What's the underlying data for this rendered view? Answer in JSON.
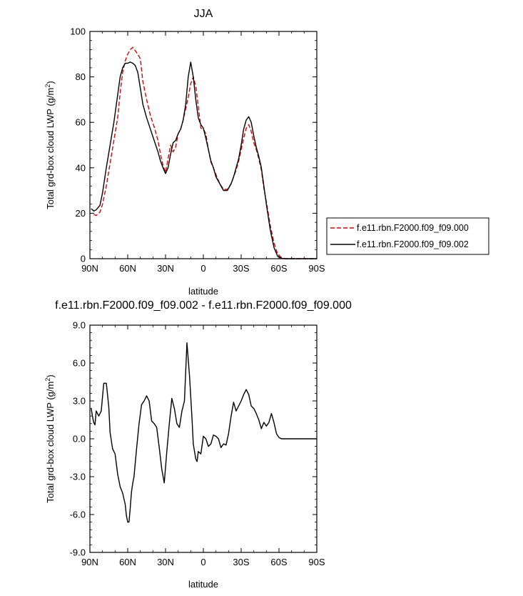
{
  "chart_data": [
    {
      "type": "line",
      "title": "JJA",
      "xlabel": "latitude",
      "ylabel_prefix": "Total grd-box cloud LWP (g/m",
      "ylabel_sup": "2",
      "ylabel_suffix": ")",
      "x_ticks": [
        90,
        60,
        30,
        0,
        -30,
        -60,
        -90
      ],
      "x_tick_labels": [
        "90N",
        "60N",
        "30N",
        "0",
        "30S",
        "60S",
        "90S"
      ],
      "xlim": [
        90,
        -90
      ],
      "ylim": [
        0,
        100
      ],
      "y_ticks": [
        0,
        20,
        40,
        60,
        80,
        100
      ],
      "y_tick_labels": [
        "0",
        "20",
        "40",
        "60",
        "80",
        "100"
      ],
      "legend_placement": "outside-right",
      "series": [
        {
          "name": "f.e11.rbn.F2000.f09_f09.000",
          "color": "#dd0000",
          "dash": "dashed",
          "x": [
            87,
            85,
            82,
            80,
            77,
            74,
            71,
            68,
            66,
            64,
            62,
            60,
            58,
            56,
            54,
            52,
            50,
            48,
            45,
            42,
            39,
            36,
            34,
            32,
            30,
            28,
            26,
            24,
            22,
            20,
            18,
            16,
            14,
            12,
            10,
            8,
            6,
            4,
            2,
            0,
            -2,
            -4,
            -6,
            -8,
            -10,
            -13,
            -16,
            -19,
            -22,
            -24,
            -26,
            -28,
            -30,
            -32,
            -34,
            -36,
            -38,
            -40,
            -42,
            -44,
            -46,
            -48,
            -50,
            -53,
            -56,
            -59,
            -62,
            -65,
            -68,
            -70,
            -72,
            -74,
            -76,
            -78,
            -82,
            -86,
            -90
          ],
          "y": [
            19.5,
            19,
            20.5,
            24,
            32,
            42,
            52,
            62,
            73,
            82,
            87,
            90,
            92,
            93,
            91.5,
            90,
            88,
            78,
            70,
            63,
            58,
            52,
            46,
            41,
            38,
            44,
            50,
            47,
            49,
            55,
            57,
            61,
            66,
            71,
            77,
            80,
            76,
            67,
            57.5,
            57,
            55,
            48,
            42.5,
            40,
            37,
            33,
            30.5,
            30.5,
            33,
            36,
            39,
            43,
            48,
            53,
            57.5,
            59,
            56,
            51,
            48,
            44,
            39,
            31,
            25,
            15,
            7,
            2,
            0.5,
            0,
            0,
            0,
            0,
            0,
            0,
            0,
            0,
            0,
            0
          ]
        },
        {
          "name": "f.e11.rbn.F2000.f09_f09.002",
          "color": "#000000",
          "dash": "solid",
          "x": [
            89,
            87,
            85,
            82,
            80,
            77,
            74,
            71,
            68,
            66,
            64,
            62,
            60,
            58,
            56,
            54,
            52,
            50,
            48,
            45,
            42,
            39,
            36,
            34,
            32,
            30,
            28,
            26,
            24,
            22,
            20,
            18,
            16,
            14,
            12,
            10,
            8,
            6,
            4,
            2,
            0,
            -2,
            -4,
            -6,
            -8,
            -10,
            -13,
            -16,
            -19,
            -22,
            -24,
            -26,
            -28,
            -30,
            -32,
            -34,
            -36,
            -38,
            -40,
            -42,
            -44,
            -46,
            -48,
            -50,
            -53,
            -56,
            -59,
            -62,
            -65,
            -68,
            -70,
            -72,
            -74,
            -76,
            -78,
            -82,
            -86,
            -90
          ],
          "y": [
            22,
            21,
            21.5,
            23.5,
            29,
            40,
            50,
            60,
            72,
            80,
            84,
            86,
            86,
            86.5,
            86,
            85,
            82,
            75,
            68,
            62,
            57,
            52,
            47,
            43,
            40,
            37.5,
            40,
            46,
            51,
            52,
            55,
            57,
            61,
            68,
            80,
            86.5,
            80,
            70,
            62,
            59,
            57.5,
            53,
            48,
            43,
            40,
            36,
            33,
            30,
            30,
            33,
            36,
            40,
            44,
            50,
            57,
            61,
            62.5,
            60,
            54,
            49,
            45,
            40,
            32,
            24,
            13,
            5,
            1,
            0.2,
            0,
            0,
            0,
            0,
            0,
            0,
            0,
            0,
            0,
            0
          ]
        }
      ]
    },
    {
      "type": "line",
      "title": "f.e11.rbn.F2000.f09_f09.002 - f.e11.rbn.F2000.f09_f09.000",
      "xlabel": "latitude",
      "ylabel_prefix": "Total grd-box cloud LWP (g/m",
      "ylabel_sup": "2",
      "ylabel_suffix": ")",
      "x_ticks": [
        90,
        60,
        30,
        0,
        -30,
        -60,
        -90
      ],
      "x_tick_labels": [
        "90N",
        "60N",
        "30N",
        "0",
        "30S",
        "60S",
        "90S"
      ],
      "xlim": [
        90,
        -90
      ],
      "ylim": [
        -9,
        9
      ],
      "y_ticks": [
        -9,
        -6,
        -3,
        0,
        3,
        6,
        9
      ],
      "y_tick_labels": [
        "-9.0",
        "-6.0",
        "-3.0",
        "0.0",
        "3.0",
        "6.0",
        "9.0"
      ],
      "series": [
        {
          "name": "",
          "color": "#000000",
          "dash": "solid",
          "x": [
            89,
            88,
            87,
            86,
            85,
            83,
            81,
            79,
            77,
            76,
            75,
            74,
            72,
            70,
            68,
            66,
            64,
            62,
            61,
            60,
            59,
            58,
            57,
            56,
            55,
            53,
            51,
            49,
            47,
            45,
            43,
            41,
            39,
            37,
            35,
            33,
            31,
            29,
            27,
            25,
            23,
            21,
            19,
            17,
            15,
            13,
            11,
            9,
            8,
            7,
            6,
            5,
            4,
            2,
            0,
            -2,
            -4,
            -6,
            -8,
            -10,
            -12,
            -14,
            -16,
            -18,
            -20,
            -22,
            -24,
            -26,
            -28,
            -30,
            -32,
            -34,
            -36,
            -38,
            -40,
            -42,
            -44,
            -46,
            -48,
            -50,
            -52,
            -54,
            -56,
            -58,
            -60,
            -62,
            -64,
            -66,
            -68,
            -70,
            -75,
            -80,
            -85,
            -90
          ],
          "y": [
            2.4,
            1.8,
            1.3,
            1.1,
            2.2,
            1.8,
            2.2,
            4.4,
            4.4,
            3.5,
            2.5,
            0.5,
            -0.8,
            -1.2,
            -2.8,
            -3.8,
            -4.3,
            -5.2,
            -6.1,
            -6.6,
            -6.6,
            -5.5,
            -4.2,
            -3.5,
            -3.0,
            -0.8,
            1.2,
            2.7,
            3.0,
            3.4,
            3.0,
            1.4,
            1.2,
            0.9,
            -0.7,
            -2.4,
            -3.5,
            -1.0,
            1.2,
            3.2,
            2.4,
            1.2,
            0.9,
            2.2,
            3.0,
            7.6,
            5.0,
            1.6,
            -0.4,
            -1.0,
            -1.6,
            -1.8,
            -1.0,
            -1.2,
            0.2,
            0.0,
            -0.6,
            -0.4,
            0.3,
            0.2,
            0.0,
            -0.7,
            -0.4,
            -0.5,
            0.4,
            1.8,
            2.9,
            2.2,
            2.6,
            3.0,
            3.5,
            3.9,
            3.5,
            2.6,
            2.4,
            2.0,
            1.5,
            0.8,
            1.3,
            1.0,
            1.3,
            2.0,
            1.3,
            0.4,
            0.1,
            0.0,
            0.0,
            0.0,
            0.0,
            0.0,
            0.0,
            0.0,
            0.0,
            0.0
          ]
        }
      ]
    }
  ]
}
